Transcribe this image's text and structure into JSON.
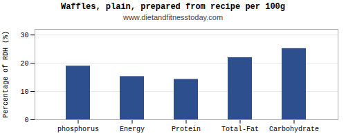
{
  "chart_data": {
    "type": "bar",
    "title": "Waffles, plain, prepared from recipe per 100g",
    "subtitle": "www.dietandfitnesstoday.com",
    "categories": [
      "phosphorus",
      "Energy",
      "Protein",
      "Total-Fat",
      "Carbohydrate"
    ],
    "values": [
      19.0,
      15.3,
      14.3,
      22.0,
      25.2
    ],
    "color": "#2d4f8e",
    "ylabel": "Percentage of RDH (%)",
    "ylim": [
      0,
      32
    ],
    "yticks": [
      0,
      10,
      20,
      30
    ],
    "grid": true
  }
}
